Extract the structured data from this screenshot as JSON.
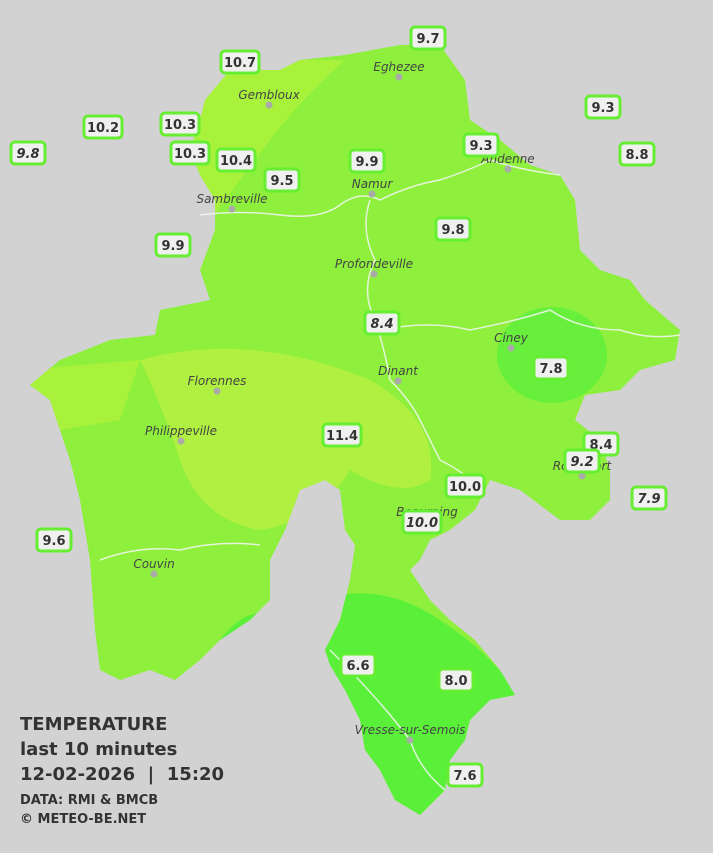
{
  "legend": {
    "title": "TEMPERATURE",
    "subtitle": "last 10 minutes",
    "datetime": "12-02-2026  |  15:20",
    "source": "DATA: RMI & BMCB",
    "credit": "© METEO-BE.NET"
  },
  "cities": [
    "Eghezee",
    "Gembloux",
    "Andenne",
    "Namur",
    "Sambreville",
    "Profondeville",
    "Ciney",
    "Dinant",
    "Florennes",
    "Philippeville",
    "Rochefort",
    "Beauraing",
    "Couvin",
    "Vresse-sur-Semois"
  ],
  "stations": [
    {
      "label": "10.7"
    },
    {
      "label": "9.7"
    },
    {
      "label": "10.2"
    },
    {
      "label": "10.3"
    },
    {
      "label": "9.8",
      "italic": true
    },
    {
      "label": "10.3"
    },
    {
      "label": "10.4"
    },
    {
      "label": "9.5"
    },
    {
      "label": "9.9"
    },
    {
      "label": "9.3"
    },
    {
      "label": "9.3"
    },
    {
      "label": "8.8"
    },
    {
      "label": "9.9"
    },
    {
      "label": "9.8"
    },
    {
      "label": "8.4",
      "italic": true
    },
    {
      "label": "7.8"
    },
    {
      "label": "11.4"
    },
    {
      "label": "8.4"
    },
    {
      "label": "9.2",
      "italic": true
    },
    {
      "label": "10.0"
    },
    {
      "label": "7.9",
      "italic": true
    },
    {
      "label": "10.0",
      "italic": true
    },
    {
      "label": "9.6"
    },
    {
      "label": "6.6"
    },
    {
      "label": "8.0"
    },
    {
      "label": "7.6"
    }
  ]
}
